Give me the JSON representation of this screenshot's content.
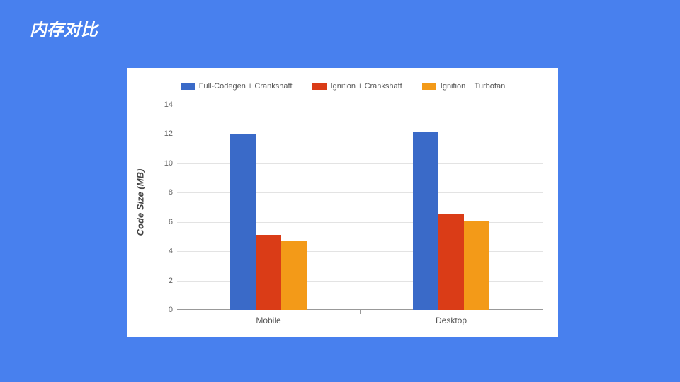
{
  "slide": {
    "title": "内存对比"
  },
  "chart": {
    "type": "bar",
    "ylabel": "Code Size (MB)",
    "ylim": [
      0,
      14
    ],
    "ytick_step": 2,
    "background_color": "#ffffff",
    "grid_color": "#e3e3e3",
    "axis_fontsize": 11,
    "ylabel_fontsize": 13,
    "legend_fontsize": 11,
    "categories": [
      "Mobile",
      "Desktop"
    ],
    "series": [
      {
        "name": "Full-Codegen + Crankshaft",
        "color": "#3a6ac8",
        "values": [
          12.0,
          12.1
        ]
      },
      {
        "name": "Ignition + Crankshaft",
        "color": "#da3c17",
        "values": [
          5.1,
          6.5
        ]
      },
      {
        "name": "Ignition + Turbofan",
        "color": "#f39a18",
        "values": [
          4.75,
          6.05
        ]
      }
    ],
    "bar_width_ratio": 0.14,
    "group_gap_ratio": 0.44
  }
}
